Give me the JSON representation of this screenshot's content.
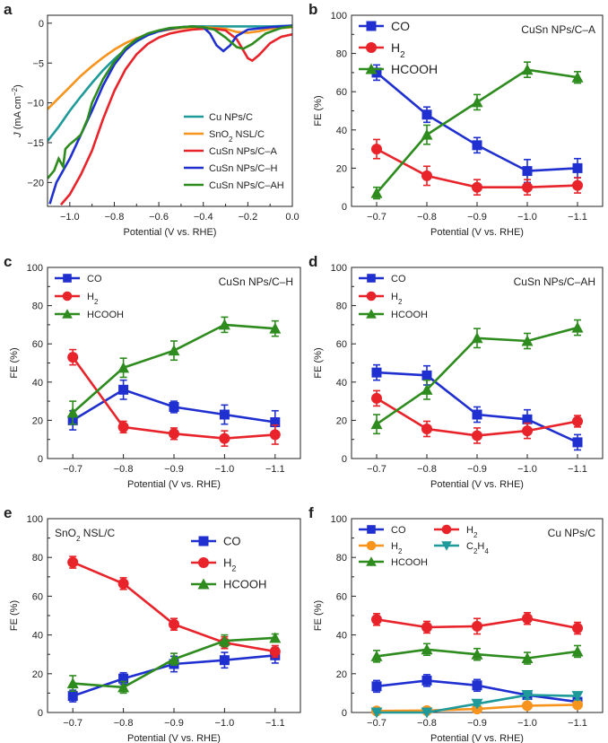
{
  "figure": {
    "colors": {
      "CO": "#1f2fd0",
      "H2": "#e8232a",
      "HCOOH": "#2e8b1e",
      "H2b": "#f7941d",
      "C2H4": "#1f9a9a",
      "Cu": "#1f9a9a",
      "SnO2": "#f7941d"
    }
  },
  "chart_data": [
    {
      "id": "a",
      "panel_label": "a",
      "type": "line",
      "xlabel": "Potential (V vs. RHE)",
      "ylabel_main": "J",
      "ylabel_unit_pre": " (mA cm",
      "ylabel_sup": "−2",
      "ylabel_unit_post": ")",
      "xlim": [
        -1.1,
        0.0
      ],
      "ylim": [
        -23,
        1
      ],
      "xticks": [
        -1.0,
        -0.8,
        -0.6,
        -0.4,
        -0.2,
        0.0
      ],
      "xticklabels": [
        "−1.0",
        "−0.8",
        "−0.6",
        "−0.4",
        "−0.2",
        "0.0"
      ],
      "yticks": [
        0,
        -5,
        -10,
        -15,
        -20
      ],
      "yticklabels": [
        "0",
        "−5",
        "−10",
        "−15",
        "−20"
      ],
      "legend": [
        {
          "name": "Cu NPs/C",
          "color": "#1f9a9a"
        },
        {
          "name": "SnO",
          "sub": "2",
          "rest": " NSL/C",
          "color": "#f7941d"
        },
        {
          "name": "CuSn NPs/C–A",
          "color": "#e8232a"
        },
        {
          "name": "CuSn NPs/C–H",
          "color": "#1f2fd0"
        },
        {
          "name": "CuSn NPs/C–AH",
          "color": "#2e8b1e"
        }
      ],
      "series": [
        {
          "name": "Cu NPs/C",
          "color": "#1f9a9a",
          "points": [
            [
              -1.1,
              -14.8
            ],
            [
              -1.05,
              -13.0
            ],
            [
              -1.0,
              -11.0
            ],
            [
              -0.95,
              -9.2
            ],
            [
              -0.9,
              -7.5
            ],
            [
              -0.85,
              -5.9
            ],
            [
              -0.8,
              -4.5
            ],
            [
              -0.75,
              -3.3
            ],
            [
              -0.7,
              -2.3
            ],
            [
              -0.65,
              -1.5
            ],
            [
              -0.6,
              -1.0
            ],
            [
              -0.55,
              -0.7
            ],
            [
              -0.5,
              -0.5
            ],
            [
              -0.45,
              -0.4
            ],
            [
              -0.4,
              -0.4
            ],
            [
              -0.3,
              -0.4
            ],
            [
              -0.2,
              -0.4
            ],
            [
              -0.1,
              -0.4
            ],
            [
              0.0,
              -0.3
            ]
          ]
        },
        {
          "name": "SnO2 NSL/C",
          "color": "#f7941d",
          "points": [
            [
              -1.1,
              -10.8
            ],
            [
              -1.05,
              -9.4
            ],
            [
              -1.0,
              -8.0
            ],
            [
              -0.95,
              -6.6
            ],
            [
              -0.9,
              -5.4
            ],
            [
              -0.85,
              -4.3
            ],
            [
              -0.8,
              -3.3
            ],
            [
              -0.75,
              -2.5
            ],
            [
              -0.7,
              -1.9
            ],
            [
              -0.65,
              -1.4
            ],
            [
              -0.6,
              -1.0
            ],
            [
              -0.55,
              -0.8
            ],
            [
              -0.5,
              -0.6
            ],
            [
              -0.4,
              -0.5
            ],
            [
              -0.3,
              -0.7
            ],
            [
              -0.25,
              -1.1
            ],
            [
              -0.2,
              -1.2
            ],
            [
              -0.15,
              -1.0
            ],
            [
              -0.1,
              -0.7
            ],
            [
              0.0,
              -0.5
            ]
          ]
        },
        {
          "name": "CuSn NPs/C–A",
          "color": "#e8232a",
          "points": [
            [
              -1.04,
              -22.8
            ],
            [
              -1.0,
              -21.5
            ],
            [
              -0.95,
              -19.0
            ],
            [
              -0.9,
              -16.0
            ],
            [
              -0.85,
              -12.0
            ],
            [
              -0.8,
              -8.5
            ],
            [
              -0.75,
              -5.8
            ],
            [
              -0.7,
              -3.9
            ],
            [
              -0.65,
              -2.6
            ],
            [
              -0.6,
              -1.8
            ],
            [
              -0.55,
              -1.3
            ],
            [
              -0.5,
              -1.0
            ],
            [
              -0.45,
              -0.8
            ],
            [
              -0.4,
              -0.7
            ],
            [
              -0.35,
              -0.7
            ],
            [
              -0.3,
              -0.9
            ],
            [
              -0.25,
              -2.0
            ],
            [
              -0.2,
              -4.4
            ],
            [
              -0.18,
              -4.7
            ],
            [
              -0.15,
              -4.0
            ],
            [
              -0.1,
              -2.5
            ],
            [
              -0.05,
              -1.7
            ],
            [
              0.0,
              -1.4
            ]
          ]
        },
        {
          "name": "CuSn NPs/C–H",
          "color": "#1f2fd0",
          "points": [
            [
              -1.09,
              -22.7
            ],
            [
              -1.06,
              -20.0
            ],
            [
              -1.0,
              -17.0
            ],
            [
              -0.95,
              -14.0
            ],
            [
              -0.9,
              -11.0
            ],
            [
              -0.85,
              -7.8
            ],
            [
              -0.8,
              -5.2
            ],
            [
              -0.75,
              -3.4
            ],
            [
              -0.7,
              -2.2
            ],
            [
              -0.65,
              -1.5
            ],
            [
              -0.6,
              -1.0
            ],
            [
              -0.55,
              -0.7
            ],
            [
              -0.5,
              -0.5
            ],
            [
              -0.45,
              -0.4
            ],
            [
              -0.4,
              -0.5
            ],
            [
              -0.37,
              -1.3
            ],
            [
              -0.34,
              -2.8
            ],
            [
              -0.31,
              -3.5
            ],
            [
              -0.28,
              -2.8
            ],
            [
              -0.25,
              -1.6
            ],
            [
              -0.2,
              -0.8
            ],
            [
              -0.1,
              -0.5
            ],
            [
              0.0,
              -0.3
            ]
          ]
        },
        {
          "name": "CuSn NPs/C–AH",
          "color": "#2e8b1e",
          "points": [
            [
              -1.1,
              -19.5
            ],
            [
              -1.07,
              -18.5
            ],
            [
              -1.05,
              -17.0
            ],
            [
              -1.03,
              -18.0
            ],
            [
              -1.02,
              -15.8
            ],
            [
              -1.0,
              -15.2
            ],
            [
              -0.97,
              -14.5
            ],
            [
              -0.95,
              -14.0
            ],
            [
              -0.92,
              -12.0
            ],
            [
              -0.9,
              -10.0
            ],
            [
              -0.85,
              -7.0
            ],
            [
              -0.8,
              -4.8
            ],
            [
              -0.75,
              -3.1
            ],
            [
              -0.7,
              -2.0
            ],
            [
              -0.65,
              -1.3
            ],
            [
              -0.6,
              -0.9
            ],
            [
              -0.55,
              -0.6
            ],
            [
              -0.5,
              -0.5
            ],
            [
              -0.45,
              -0.4
            ],
            [
              -0.4,
              -0.5
            ],
            [
              -0.35,
              -0.8
            ],
            [
              -0.3,
              -1.8
            ],
            [
              -0.25,
              -3.0
            ],
            [
              -0.22,
              -3.2
            ],
            [
              -0.18,
              -2.6
            ],
            [
              -0.12,
              -1.3
            ],
            [
              -0.05,
              -0.6
            ],
            [
              0.0,
              -0.4
            ]
          ]
        }
      ]
    },
    {
      "id": "b",
      "panel_label": "b",
      "type": "line",
      "title": "CuSn NPs/C–A",
      "xlabel": "Potential (V vs. RHE)",
      "ylabel": "FE (%)",
      "categories": [
        "−0.7",
        "−0.8",
        "−0.9",
        "−1.0",
        "−1.1"
      ],
      "ylim": [
        0,
        100
      ],
      "yticks": [
        0,
        20,
        40,
        60,
        80,
        100
      ],
      "legend_placement": "top-left",
      "legend_font": 14,
      "series": [
        {
          "name": "CO",
          "color": "#1f2fd0",
          "marker": "square",
          "values": [
            70,
            48,
            32,
            18.5,
            20
          ],
          "errors": [
            4,
            4,
            4,
            6,
            5
          ]
        },
        {
          "name": "H",
          "sub": "2",
          "color": "#e8232a",
          "marker": "circle",
          "values": [
            30,
            16,
            10,
            10,
            11
          ],
          "errors": [
            5,
            5,
            4,
            4,
            4
          ]
        },
        {
          "name": "HCOOH",
          "color": "#2e8b1e",
          "marker": "triangle",
          "values": [
            7,
            37.5,
            54.5,
            71.5,
            67.5
          ],
          "errors": [
            3,
            5,
            4,
            4,
            3
          ]
        }
      ]
    },
    {
      "id": "c",
      "panel_label": "c",
      "type": "line",
      "title": "CuSn NPs/C–H",
      "xlabel": "Potential (V vs. RHE)",
      "ylabel": "FE (%)",
      "categories": [
        "−0.7",
        "−0.8",
        "−0.9",
        "−1.0",
        "−1.1"
      ],
      "ylim": [
        0,
        100
      ],
      "yticks": [
        0,
        20,
        40,
        60,
        80,
        100
      ],
      "legend_placement": "top-left",
      "legend_font": 11,
      "series": [
        {
          "name": "CO",
          "color": "#1f2fd0",
          "marker": "square",
          "values": [
            20,
            36,
            27,
            23,
            19
          ],
          "errors": [
            5,
            5,
            3,
            5,
            6
          ]
        },
        {
          "name": "H",
          "sub": "2",
          "color": "#e8232a",
          "marker": "circle",
          "values": [
            53,
            16.5,
            13,
            10.5,
            12.5
          ],
          "errors": [
            4,
            3,
            3,
            4,
            5
          ]
        },
        {
          "name": "HCOOH",
          "color": "#2e8b1e",
          "marker": "triangle",
          "values": [
            24,
            47.5,
            56.5,
            70,
            68
          ],
          "errors": [
            6,
            5,
            5,
            4,
            4
          ]
        }
      ]
    },
    {
      "id": "d",
      "panel_label": "d",
      "type": "line",
      "title": "CuSn NPs/C–AH",
      "xlabel": "Potential (V vs. RHE)",
      "ylabel": "FE (%)",
      "categories": [
        "−0.7",
        "−0.8",
        "−0.9",
        "−1.0",
        "−1.1"
      ],
      "ylim": [
        0,
        100
      ],
      "yticks": [
        0,
        20,
        40,
        60,
        80,
        100
      ],
      "legend_placement": "top-left",
      "legend_font": 11,
      "series": [
        {
          "name": "CO",
          "color": "#1f2fd0",
          "marker": "square",
          "values": [
            45,
            43.5,
            23,
            20.5,
            8.5
          ],
          "errors": [
            4,
            5,
            4,
            5,
            4
          ]
        },
        {
          "name": "H",
          "sub": "2",
          "color": "#e8232a",
          "marker": "circle",
          "values": [
            31.5,
            15.5,
            12,
            14.5,
            19.5
          ],
          "errors": [
            4,
            4,
            4,
            4,
            3
          ]
        },
        {
          "name": "HCOOH",
          "color": "#2e8b1e",
          "marker": "triangle",
          "values": [
            18,
            36,
            63,
            61.5,
            68.5
          ],
          "errors": [
            5,
            5,
            5,
            4,
            4
          ]
        }
      ]
    },
    {
      "id": "e",
      "panel_label": "e",
      "type": "line",
      "title": "SnO",
      "title_sub": "2",
      "title_rest": " NSL/C",
      "title_placement": "top-left",
      "xlabel": "Potential (V vs. RHE)",
      "ylabel": "FE (%)",
      "categories": [
        "−0.7",
        "−0.8",
        "−0.9",
        "−1.0",
        "−1.1"
      ],
      "ylim": [
        0,
        100
      ],
      "yticks": [
        0,
        20,
        40,
        60,
        80,
        100
      ],
      "legend_placement": "top-right",
      "legend_font": 13,
      "series": [
        {
          "name": "CO",
          "color": "#1f2fd0",
          "marker": "square",
          "values": [
            8.5,
            17.5,
            25,
            27,
            29.5
          ],
          "errors": [
            3,
            3,
            4,
            4,
            4
          ]
        },
        {
          "name": "H",
          "sub": "2",
          "color": "#e8232a",
          "marker": "circle",
          "values": [
            77.5,
            66.5,
            45.5,
            36,
            31.5
          ],
          "errors": [
            3,
            3,
            3,
            3,
            3
          ]
        },
        {
          "name": "HCOOH",
          "color": "#2e8b1e",
          "marker": "triangle",
          "values": [
            15,
            13,
            27.5,
            37,
            38.5
          ],
          "errors": [
            4,
            3,
            3,
            3,
            2
          ]
        }
      ]
    },
    {
      "id": "f",
      "panel_label": "f",
      "type": "line",
      "title": "Cu NPs/C",
      "xlabel": "Potential (V vs. RHE)",
      "ylabel": "FE (%)",
      "categories": [
        "−0.7",
        "−0.8",
        "−0.9",
        "−1.0",
        "−1.1"
      ],
      "ylim": [
        0,
        100
      ],
      "yticks": [
        0,
        20,
        40,
        60,
        80,
        100
      ],
      "legend_placement": "top-left-two-column",
      "legend_font": 11,
      "series": [
        {
          "name": "CO",
          "color": "#1f2fd0",
          "marker": "square",
          "values": [
            13.5,
            16.5,
            14,
            9,
            5.5
          ],
          "errors": [
            3,
            3,
            3,
            2,
            2
          ]
        },
        {
          "name": "H",
          "sub": "2",
          "color": "#e8232a",
          "marker": "circle",
          "values": [
            48,
            44,
            44.5,
            48.5,
            43.5
          ],
          "errors": [
            3,
            3,
            4,
            3,
            3
          ]
        },
        {
          "name": "H",
          "sub": "2",
          "color": "#f7941d",
          "marker": "circle",
          "values": [
            0.8,
            1,
            1.8,
            3.5,
            4
          ],
          "errors": [
            0.5,
            0.5,
            0.8,
            1,
            1
          ]
        },
        {
          "name": "C",
          "sub": "2",
          "rest": "H",
          "sub2": "4",
          "color": "#1f9a9a",
          "marker": "triangle-down",
          "values": [
            0,
            0,
            4.5,
            9,
            8.5
          ],
          "errors": [
            0,
            0,
            1,
            2,
            2
          ]
        },
        {
          "name": "HCOOH",
          "color": "#2e8b1e",
          "marker": "triangle",
          "values": [
            29,
            32.5,
            30,
            28,
            31.5
          ],
          "errors": [
            3,
            3,
            3,
            3,
            3
          ]
        }
      ]
    }
  ]
}
